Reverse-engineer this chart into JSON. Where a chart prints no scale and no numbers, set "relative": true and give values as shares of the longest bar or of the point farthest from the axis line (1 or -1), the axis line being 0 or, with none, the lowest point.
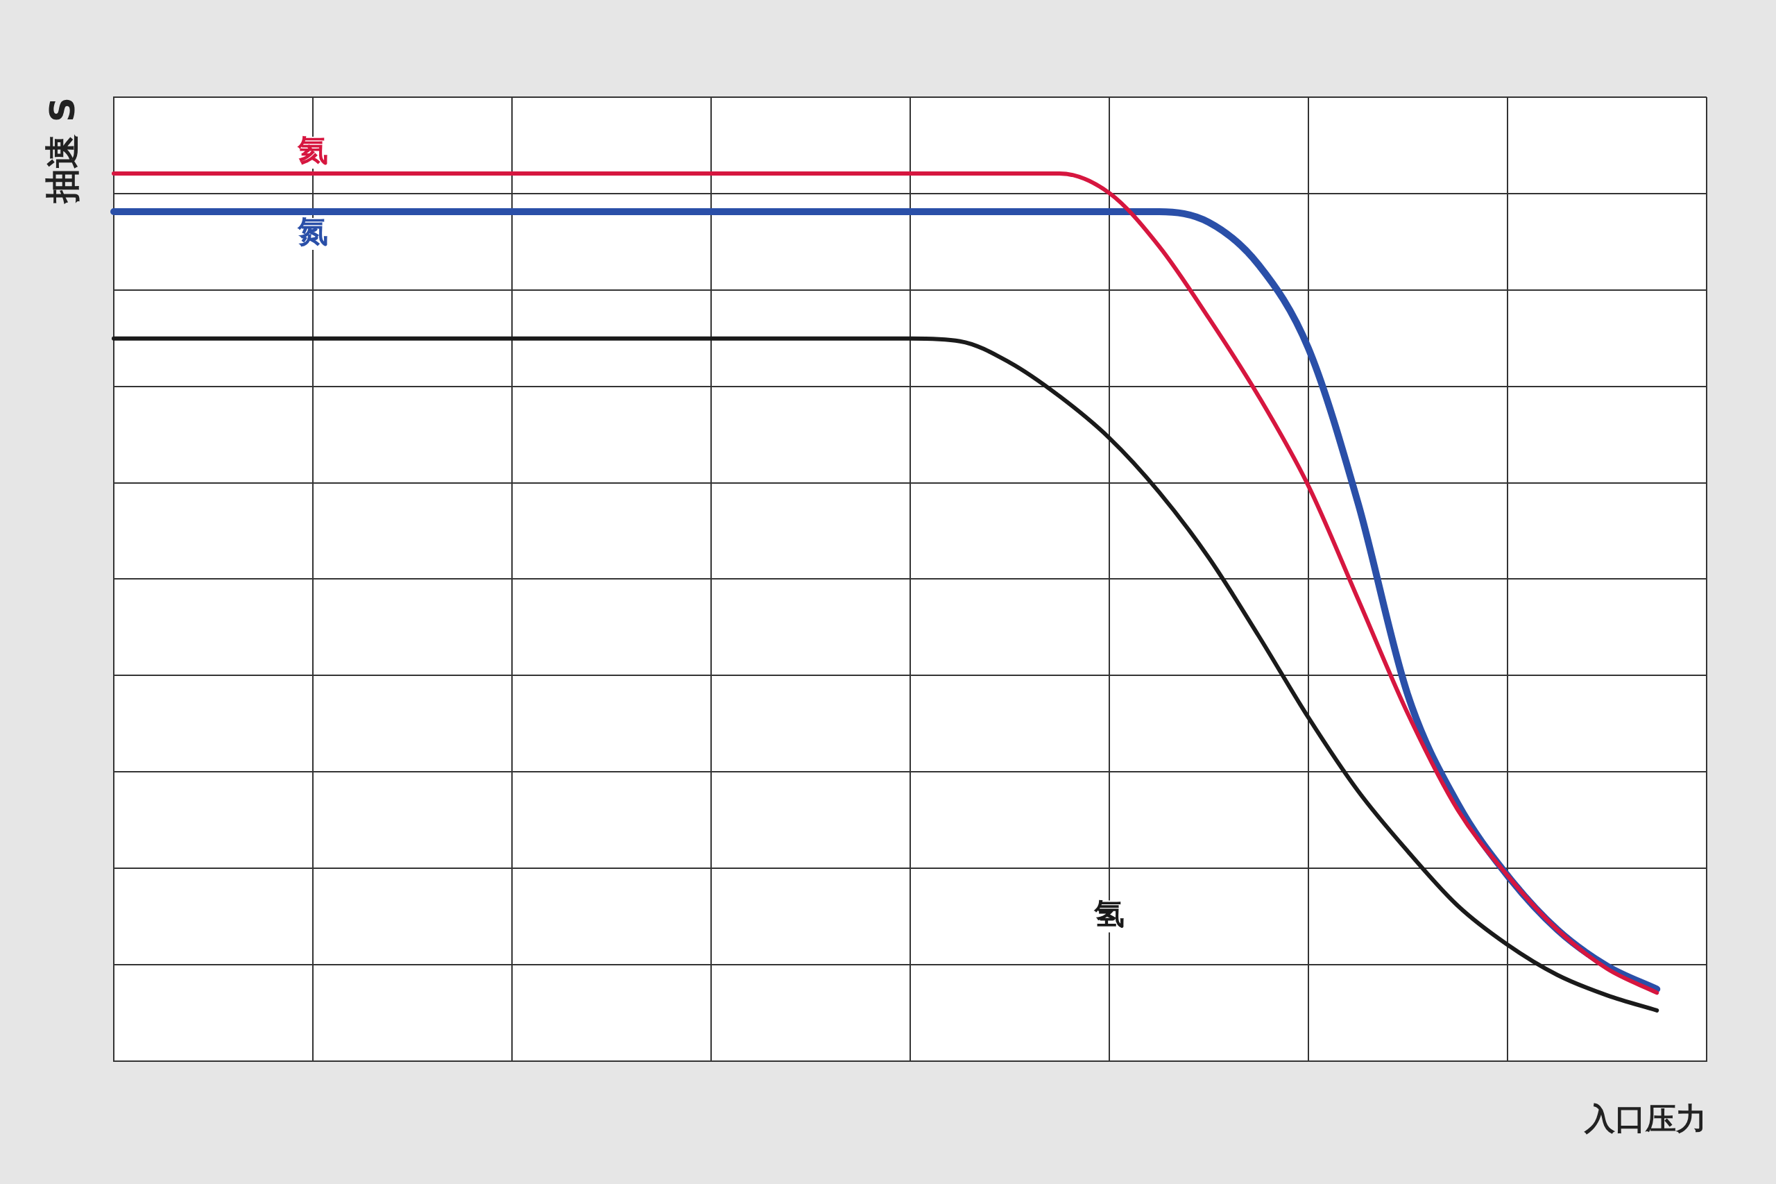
{
  "chart_data": {
    "type": "line",
    "relative": true,
    "ylabel": "抽速 S",
    "xlabel": "入口压力",
    "grid": true,
    "legend": false,
    "marker": "none",
    "categories": [
      null,
      null,
      null,
      null,
      null,
      null,
      null,
      null,
      null,
      null,
      null,
      null,
      null,
      null,
      null,
      null,
      null,
      null,
      null,
      null,
      null,
      null,
      null,
      null,
      null,
      null,
      null,
      null,
      null,
      null,
      null,
      null,
      null
    ],
    "series": [
      {
        "name": "氦",
        "color": "#d6163f",
        "values": [
          1,
          1,
          1,
          1,
          1,
          1,
          1,
          1,
          1,
          1,
          1,
          1,
          1,
          1,
          1,
          1,
          1,
          1,
          1,
          1,
          0.978,
          0.918,
          0.837,
          0.749,
          0.648,
          0.52,
          0.391,
          0.283,
          0.209,
          0.148,
          0.104,
          0.077,
          null
        ]
      },
      {
        "name": "氮",
        "color": "#2a4fa8",
        "values": [
          0.957,
          0.957,
          0.957,
          0.957,
          0.957,
          0.957,
          0.957,
          0.957,
          0.957,
          0.957,
          0.957,
          0.957,
          0.957,
          0.957,
          0.957,
          0.957,
          0.957,
          0.957,
          0.957,
          0.957,
          0.957,
          0.957,
          0.945,
          0.897,
          0.803,
          0.628,
          0.412,
          0.29,
          0.209,
          0.148,
          0.107,
          0.081,
          null
        ]
      },
      {
        "name": "氢",
        "color": "#1a1a1a",
        "values": [
          0.814,
          0.814,
          0.814,
          0.814,
          0.814,
          0.814,
          0.814,
          0.814,
          0.814,
          0.814,
          0.814,
          0.814,
          0.814,
          0.814,
          0.814,
          0.814,
          0.814,
          0.811,
          0.787,
          0.749,
          0.702,
          0.641,
          0.567,
          0.479,
          0.387,
          0.304,
          0.236,
          0.175,
          0.131,
          0.097,
          0.074,
          0.057,
          null
        ]
      }
    ]
  }
}
